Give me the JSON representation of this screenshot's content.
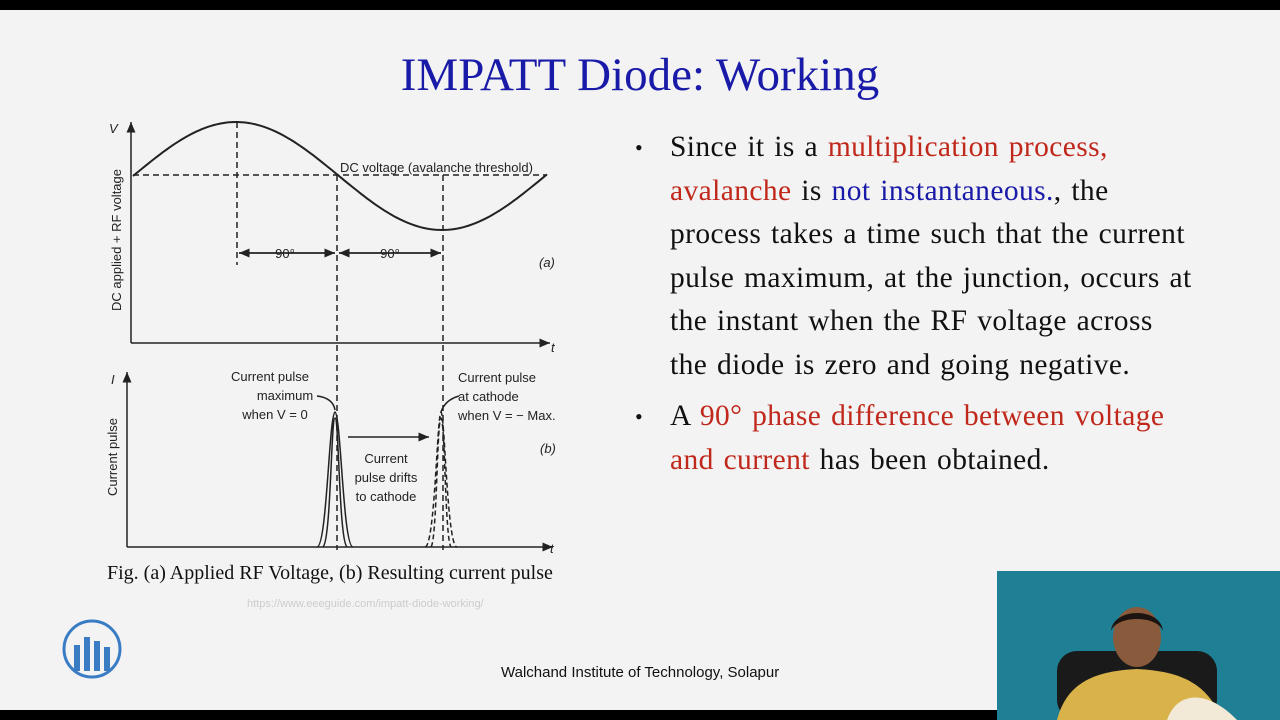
{
  "title": "IMPATT Diode: Working",
  "figure": {
    "v_axis": "V",
    "v_axis_label": "DC applied + RF voltage",
    "threshold_label": "DC voltage (avalanche threshold)",
    "phase_labels": [
      "90°",
      "90°"
    ],
    "panel_a": "(a)",
    "t_axis_a": "t",
    "i_axis": "I",
    "i_axis_label": "Current pulse",
    "pulse_max_label": [
      "Current pulse",
      "maximum",
      "when V = 0"
    ],
    "pulse_cathode_label": [
      "Current pulse",
      "at cathode",
      "when V = − Max."
    ],
    "drift_label": [
      "Current",
      "pulse drifts",
      "to cathode"
    ],
    "panel_b": "(b)",
    "t_axis_b": "t",
    "caption": "Fig. (a) Applied RF Voltage, (b) Resulting current pulse",
    "source": "https://www.eeeguide.com/impatt-diode-working/"
  },
  "bullets": [
    [
      {
        "text": "Since it is a ",
        "color": "#111111"
      },
      {
        "text": "multiplication process, avalanche",
        "color": "#c0281c"
      },
      {
        "text": " is ",
        "color": "#111111"
      },
      {
        "text": "not instantaneous.",
        "color": "#1a1aa8"
      },
      {
        "text": ", the process takes a time such that the current pulse maximum, at the junction, occurs at the instant when the RF voltage across the diode is zero and going negative.",
        "color": "#111111"
      }
    ],
    [
      {
        "text": "A ",
        "color": "#111111"
      },
      {
        "text": "90° phase difference between voltage and current",
        "color": "#c0281c"
      },
      {
        "text": " has been obtained.",
        "color": "#111111"
      }
    ]
  ],
  "footer": "Walchand Institute of Technology, Solapur"
}
